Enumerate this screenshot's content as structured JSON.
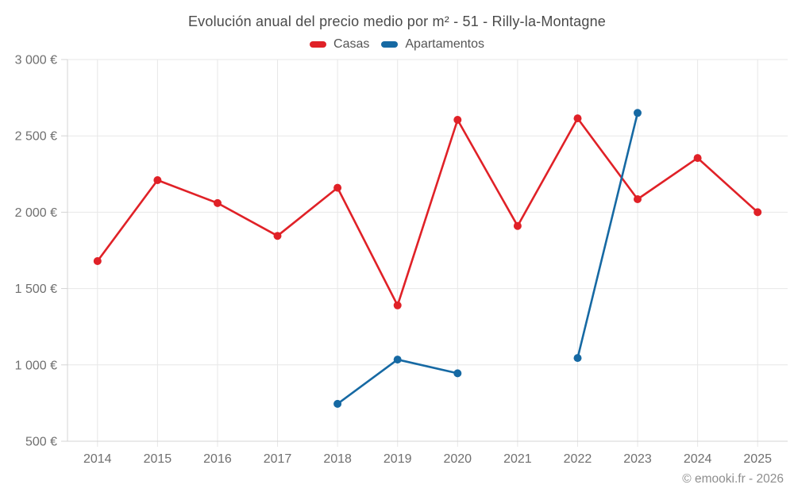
{
  "title": "Evolución anual del precio medio por m² - 51 - Rilly-la-Montagne",
  "footer": "© emooki.fr - 2026",
  "legend": [
    {
      "label": "Casas",
      "color": "#e02127"
    },
    {
      "label": "Apartamentos",
      "color": "#1669a3"
    }
  ],
  "colors": {
    "casas": "#e02127",
    "apartamentos": "#1669a3",
    "grid": "#e7e7e7",
    "axis": "#d4d4d4",
    "axis_label": "#6f6f6f",
    "title_text": "#4a4a4a",
    "footer_text": "#8e8e8e"
  },
  "chart_data": {
    "type": "line",
    "title": "Evolución anual del precio medio por m² - 51 - Rilly-la-Montagne",
    "x": [
      2014,
      2015,
      2016,
      2017,
      2018,
      2019,
      2020,
      2021,
      2022,
      2023,
      2024,
      2025
    ],
    "series": [
      {
        "name": "Casas",
        "color": "#e02127",
        "values": [
          1680,
          2210,
          2060,
          1845,
          2160,
          1390,
          2605,
          1910,
          2615,
          2085,
          2355,
          2000
        ]
      },
      {
        "name": "Apartamentos",
        "color": "#1669a3",
        "values": [
          null,
          null,
          null,
          null,
          745,
          1035,
          945,
          null,
          1045,
          2650,
          null,
          null
        ]
      }
    ],
    "xlabel": "",
    "ylabel": "",
    "ylim": [
      500,
      3000
    ],
    "yticks": [
      500,
      1000,
      1500,
      2000,
      2500,
      3000
    ],
    "ytick_suffix": " €",
    "grid": true,
    "legend_position": "top"
  }
}
